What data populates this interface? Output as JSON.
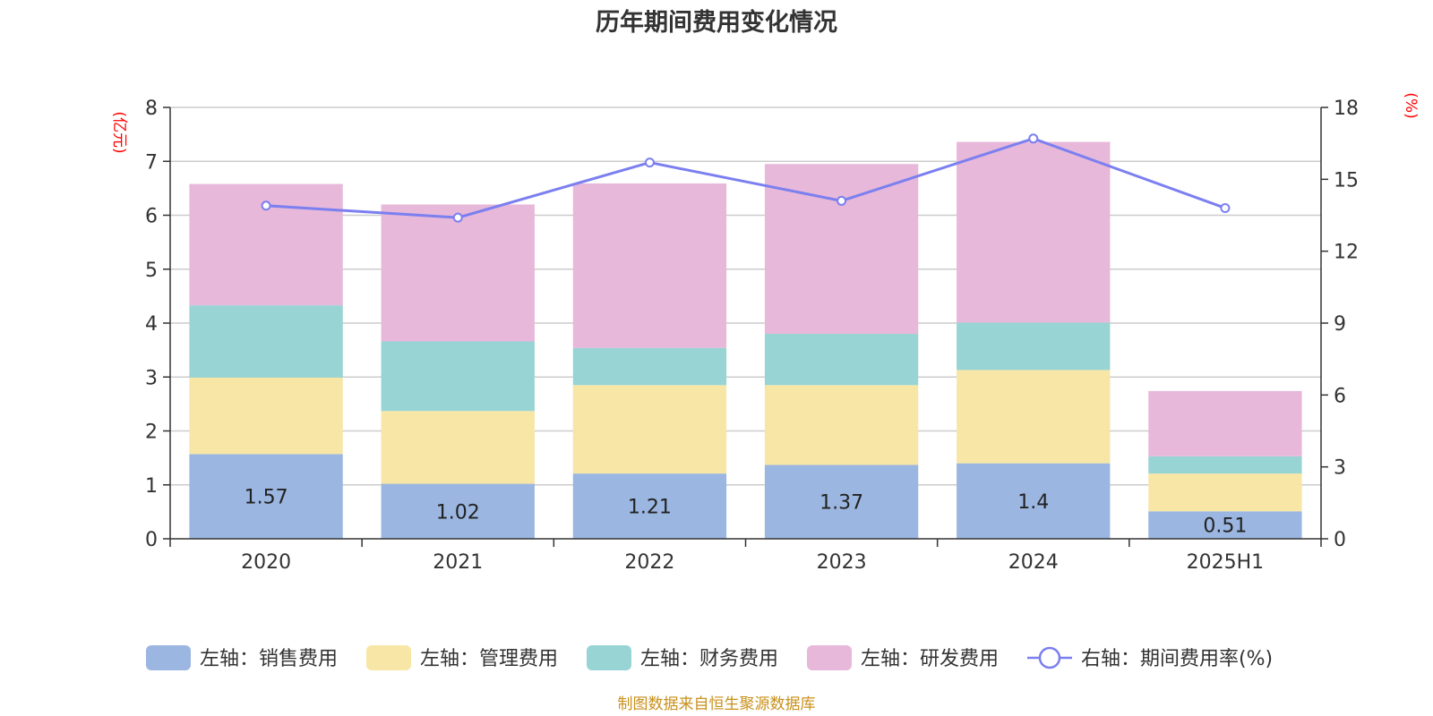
{
  "chart_data": {
    "type": "bar",
    "title": "历年期间费用变化情况",
    "categories": [
      "2020",
      "2021",
      "2022",
      "2023",
      "2024",
      "2025H1"
    ],
    "left_axis": {
      "unit": "(亿元)",
      "ylim": [
        0,
        8
      ],
      "ticks": [
        0,
        1,
        2,
        3,
        4,
        5,
        6,
        7,
        8
      ]
    },
    "right_axis": {
      "unit": "(%)",
      "ylim": [
        0,
        18
      ],
      "ticks": [
        0,
        3,
        6,
        9,
        12,
        15,
        18
      ]
    },
    "grid": true,
    "legend_position": "bottom",
    "series": [
      {
        "name": "左轴：销售费用",
        "type": "bar",
        "axis": "left",
        "color": "#9bb6e0",
        "values": [
          1.57,
          1.02,
          1.21,
          1.37,
          1.4,
          0.51
        ],
        "labels": [
          "1.57",
          "1.02",
          "1.21",
          "1.37",
          "1.4",
          "0.51"
        ]
      },
      {
        "name": "左轴：管理费用",
        "type": "bar",
        "axis": "left",
        "color": "#f7e6a6",
        "values": [
          1.42,
          1.35,
          1.64,
          1.48,
          1.73,
          0.7
        ]
      },
      {
        "name": "左轴：财务费用",
        "type": "bar",
        "axis": "left",
        "color": "#98d4d4",
        "values": [
          1.34,
          1.29,
          0.69,
          0.95,
          0.88,
          0.32
        ]
      },
      {
        "name": "左轴：研发费用",
        "type": "bar",
        "axis": "left",
        "color": "#e7b8d9",
        "values": [
          2.25,
          2.54,
          3.05,
          3.15,
          3.35,
          1.21
        ]
      },
      {
        "name": "右轴：期间费用率(%)",
        "type": "line",
        "axis": "right",
        "color": "#7b7ff0",
        "values": [
          13.9,
          13.4,
          15.7,
          14.1,
          16.7,
          13.8
        ]
      }
    ],
    "source": "制图数据来自恒生聚源数据库"
  }
}
